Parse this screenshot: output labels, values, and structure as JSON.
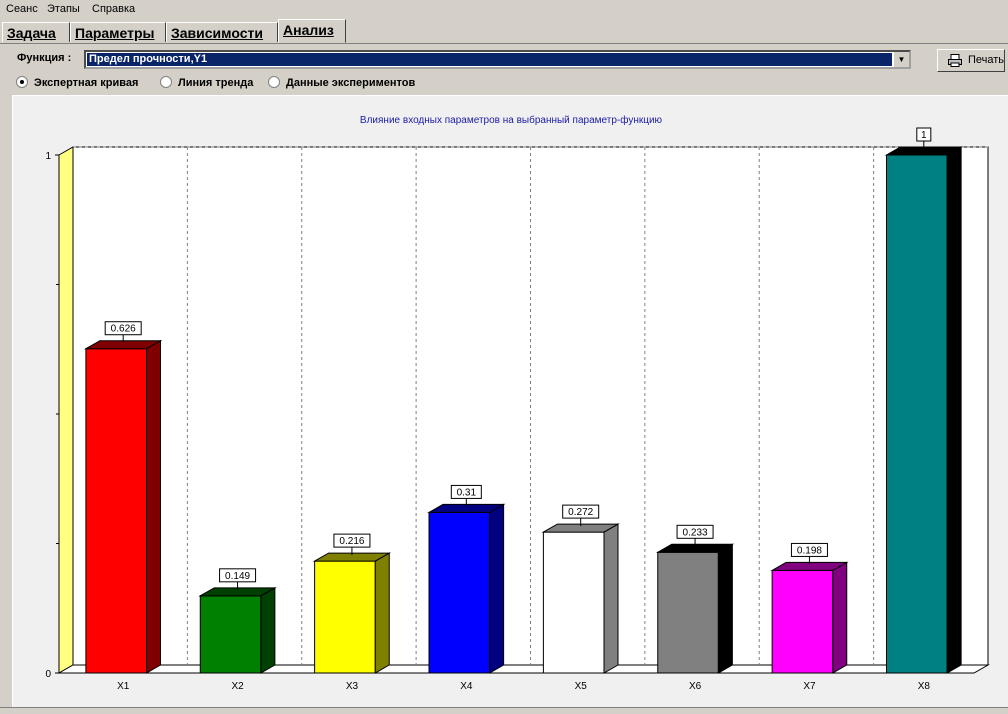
{
  "menu": [
    "Сеанс",
    "Этапы",
    "Справка"
  ],
  "tabs": [
    {
      "label": "Задача",
      "active": false
    },
    {
      "label": "Параметры",
      "active": false
    },
    {
      "label": "Зависимости",
      "active": false
    },
    {
      "label": "Анализ",
      "active": true
    }
  ],
  "function": {
    "label": "Функция :",
    "value": "Предел прочности,Y1"
  },
  "print_label": "Печать",
  "radios": [
    {
      "label": "Экспертная кривая",
      "checked": true
    },
    {
      "label": "Линия тренда",
      "checked": false
    },
    {
      "label": "Данные экспериментов",
      "checked": false
    }
  ],
  "chart_data": {
    "type": "bar",
    "title": "Влияние входных параметров на  выбранный параметр-функцию",
    "categories": [
      "X1",
      "X2",
      "X3",
      "X4",
      "X5",
      "X6",
      "X7",
      "X8"
    ],
    "values": [
      0.626,
      0.149,
      0.216,
      0.31,
      0.272,
      0.233,
      0.198,
      1
    ],
    "value_labels": [
      "0.626",
      "0.149",
      "0.216",
      "0.31",
      "0.272",
      "0.233",
      "0.198",
      "1"
    ],
    "colors": [
      "#ff0000",
      "#008000",
      "#ffff00",
      "#0000ff",
      "#ffffff",
      "#808080",
      "#ff00ff",
      "#008080"
    ],
    "side_colors": [
      "#800000",
      "#004000",
      "#808000",
      "#000080",
      "#808080",
      "#000000",
      "#800080",
      "#000000"
    ],
    "y_ticks": [
      0,
      1
    ],
    "ylim": [
      0,
      1
    ],
    "grid": true,
    "three_d": true
  }
}
